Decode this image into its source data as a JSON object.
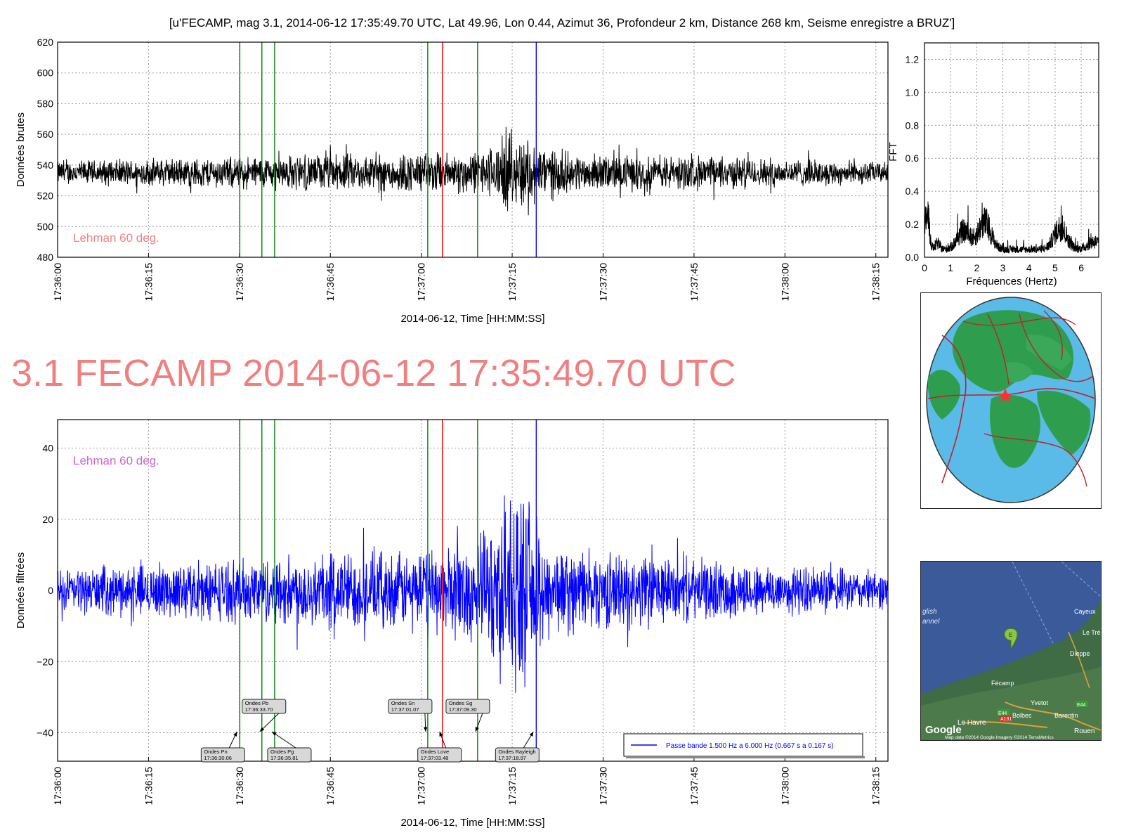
{
  "figure_title": "[u'FECAMP, mag 3.1, 2014-06-12 17:35:49.70 UTC, Lat 49.96, Lon 0.44, Azimut  36, Profondeur 2 km, Distance   268 km, Seisme enregistre a BRUZ']",
  "big_title": "3.1 FECAMP 2014-06-12 17:35:49.70 UTC",
  "colors": {
    "raw": "#000000",
    "filtered": "#0000ff",
    "phase_green": "#008000",
    "phase_red": "#ff0000",
    "phase_blue": "#0000ff",
    "title_pink": "#f08080",
    "lehman_raw": "#f08080",
    "lehman_filtered": "#cc66cc",
    "ocean": "#5bbbe8",
    "land": "#2e9e4e",
    "plates": "#c0202a"
  },
  "chart_data": [
    {
      "id": "raw",
      "type": "line",
      "ylabel": "Données brutes",
      "xlabel": "2014-06-12, Time [HH:MM:SS]",
      "xlim_seconds_after_17_36_00": [
        0,
        137
      ],
      "ylim": [
        480,
        620
      ],
      "yticks": [
        480,
        500,
        520,
        540,
        560,
        580,
        600,
        620
      ],
      "xtick_labels": [
        "17:36:00",
        "17:36:15",
        "17:36:30",
        "17:36:45",
        "17:37:00",
        "17:37:15",
        "17:37:30",
        "17:37:45",
        "17:38:00",
        "17:38:15"
      ],
      "annotation": "Lehman 60 deg.",
      "grid": true,
      "phase_lines": [
        {
          "t": "17:36:30.06",
          "color": "green"
        },
        {
          "t": "17:36:33.70",
          "color": "green"
        },
        {
          "t": "17:36:35.81",
          "color": "green"
        },
        {
          "t": "17:37:01.07",
          "color": "green"
        },
        {
          "t": "17:37:03.48",
          "color": "red"
        },
        {
          "t": "17:37:09.30",
          "color": "green"
        },
        {
          "t": "17:37:18.97",
          "color": "blue"
        }
      ],
      "envelope": [
        {
          "t": "17:36:00",
          "half_amplitude": 9
        },
        {
          "t": "17:36:30",
          "half_amplitude": 12
        },
        {
          "t": "17:36:45",
          "half_amplitude": 14
        },
        {
          "t": "17:37:10",
          "half_amplitude": 16
        },
        {
          "t": "17:37:15",
          "half_amplitude": 30
        },
        {
          "t": "17:37:25",
          "half_amplitude": 14
        },
        {
          "t": "17:37:45",
          "half_amplitude": 13
        },
        {
          "t": "17:38:17",
          "half_amplitude": 8
        }
      ],
      "baseline": 535,
      "observed_range": [
        491,
        569
      ]
    },
    {
      "id": "fft",
      "type": "line",
      "xlabel": "Fréquences (Hertz)",
      "ylabel": "FFT",
      "xlim": [
        0,
        6.67
      ],
      "ylim": [
        0,
        1.3
      ],
      "xticks": [
        0,
        1,
        2,
        3,
        4,
        5,
        6
      ],
      "yticks": [
        0.0,
        0.2,
        0.4,
        0.6,
        0.8,
        1.0,
        1.2
      ],
      "peaks": [
        {
          "f": 0.1,
          "amp": 0.47
        },
        {
          "f": 0.5,
          "amp": 0.12
        },
        {
          "f": 1.5,
          "amp": 0.26
        },
        {
          "f": 2.3,
          "amp": 0.36
        },
        {
          "f": 5.2,
          "amp": 0.3
        },
        {
          "f": 6.5,
          "amp": 0.14
        }
      ],
      "floor": 0.05,
      "grid": true
    },
    {
      "id": "filtered",
      "type": "line",
      "ylabel": "Données filtrées",
      "xlabel": "2014-06-12, Time [HH:MM:SS]",
      "xlim_seconds_after_17_36_00": [
        0,
        137
      ],
      "ylim": [
        -48,
        48
      ],
      "yticks": [
        -40,
        -20,
        0,
        20,
        40
      ],
      "xtick_labels": [
        "17:36:00",
        "17:36:15",
        "17:36:30",
        "17:36:45",
        "17:37:00",
        "17:37:15",
        "17:37:30",
        "17:37:45",
        "17:38:00",
        "17:38:15"
      ],
      "annotation": "Lehman 60 deg.",
      "grid": true,
      "legend": {
        "label": "Passe bande 1.500 Hz a 6.000 Hz (0.667 s a 0.167 s)",
        "position": "lower-right"
      },
      "phase_lines": [
        {
          "t": "17:36:30.06",
          "color": "green"
        },
        {
          "t": "17:36:33.70",
          "color": "green"
        },
        {
          "t": "17:36:35.81",
          "color": "green"
        },
        {
          "t": "17:37:01.07",
          "color": "green"
        },
        {
          "t": "17:37:03.48",
          "color": "red"
        },
        {
          "t": "17:37:09.30",
          "color": "green"
        },
        {
          "t": "17:37:18.97",
          "color": "blue"
        }
      ],
      "envelope": [
        {
          "t": "17:36:00",
          "half_amplitude": 7
        },
        {
          "t": "17:36:30",
          "half_amplitude": 10
        },
        {
          "t": "17:36:45",
          "half_amplitude": 13
        },
        {
          "t": "17:37:00",
          "half_amplitude": 12
        },
        {
          "t": "17:37:10",
          "half_amplitude": 18
        },
        {
          "t": "17:37:15",
          "half_amplitude": 34
        },
        {
          "t": "17:37:22",
          "half_amplitude": 14
        },
        {
          "t": "17:37:45",
          "half_amplitude": 10
        },
        {
          "t": "17:38:17",
          "half_amplitude": 6
        }
      ],
      "phase_labels": [
        {
          "name": "Ondes Pn",
          "time": "17:36:30.06"
        },
        {
          "name": "Ondes Pb",
          "time": "17:36:33.70"
        },
        {
          "name": "Ondes Pg",
          "time": "17:36:35.81"
        },
        {
          "name": "Ondes Sn",
          "time": "17:37:01.07"
        },
        {
          "name": "Ondes Love",
          "time": "17:37:03.48"
        },
        {
          "name": "Ondes Sg",
          "time": "17:37:09.30"
        },
        {
          "name": "Ondes Rayleigh",
          "time": "17:37:18.97"
        }
      ]
    }
  ],
  "globe_map": {
    "icon": "globe-map-icon",
    "epicenter_marker": "star"
  },
  "local_map": {
    "labels": [
      "English Channel",
      "Cayeux",
      "Le Tré",
      "Dieppe",
      "Fécamp",
      "Yvetot",
      "Bolbec",
      "Barentin",
      "Le Havre",
      "Rouen",
      "E44",
      "A131",
      "E44"
    ],
    "label_texts": {
      "channel_1": "glish",
      "channel_2": "annel",
      "cayeux": "Cayeux",
      "letre": "Le Tré",
      "dieppe": "Dieppe",
      "fecamp": "Fécamp",
      "yvetot": "Yvetot",
      "bolbec": "Bolbec",
      "barentin": "Barentin",
      "lehavre": "Le Havre",
      "rouen": "Rouen",
      "road1": "E44",
      "road2": "A131",
      "road3": "E44",
      "marker": "E",
      "google": "Google",
      "attribution": "Map data ©2014 Google  Imagery ©2014 TerraMetrics"
    }
  }
}
